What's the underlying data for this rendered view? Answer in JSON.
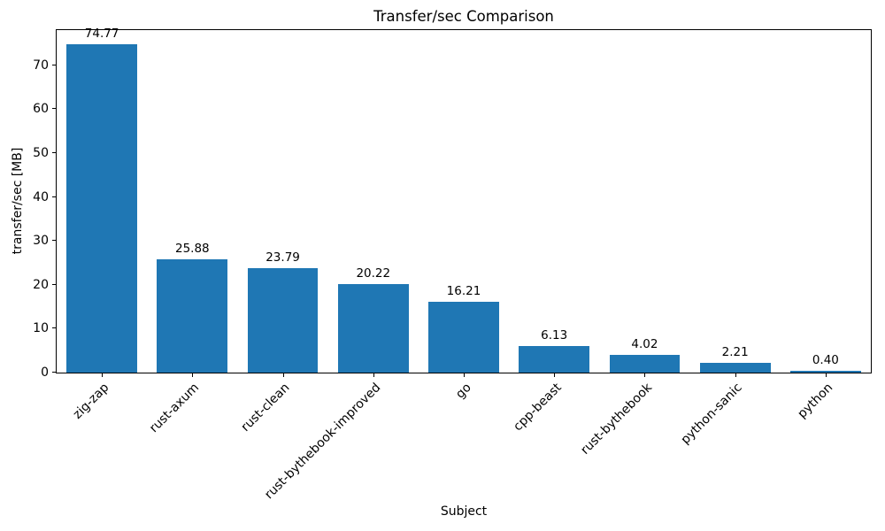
{
  "chart_data": {
    "type": "bar",
    "title": "Transfer/sec Comparison",
    "xlabel": "Subject",
    "ylabel": "transfer/sec [MB]",
    "categories": [
      "zig-zap",
      "rust-axum",
      "rust-clean",
      "rust-bythebook-improved",
      "go",
      "cpp-beast",
      "rust-bythebook",
      "python-sanic",
      "python"
    ],
    "values": [
      74.77,
      25.88,
      23.79,
      20.22,
      16.21,
      6.13,
      4.02,
      2.21,
      0.4
    ],
    "value_labels": [
      "74.77",
      "25.88",
      "23.79",
      "20.22",
      "16.21",
      "6.13",
      "4.02",
      "2.21",
      "0.40"
    ],
    "ylim": [
      0,
      78
    ],
    "yticks": [
      0,
      10,
      20,
      30,
      40,
      50,
      60,
      70
    ],
    "bar_color": "#1f77b4",
    "spine_color": "#000000",
    "grid": false,
    "legend_position": "none"
  }
}
